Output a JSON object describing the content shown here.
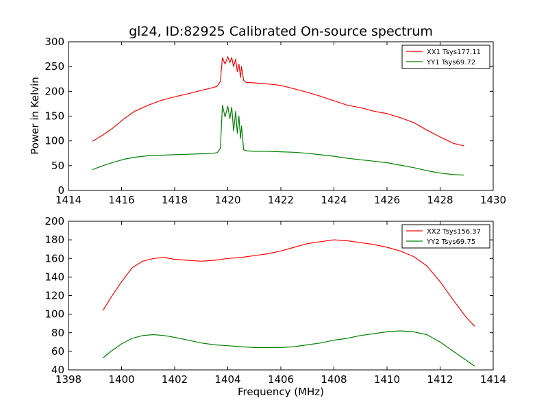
{
  "figure_title": "gl24, ID:82925 Calibrated On-source spectrum",
  "chart_data": [
    {
      "type": "line",
      "title": "gl24, ID:82925 Calibrated On-source spectrum",
      "xlabel": "",
      "ylabel": "Power in Kelvin",
      "xlim": [
        1414,
        1430
      ],
      "ylim": [
        0,
        300
      ],
      "xticks": [
        1414,
        1416,
        1418,
        1420,
        1422,
        1424,
        1426,
        1428,
        1430
      ],
      "yticks": [
        0,
        50,
        100,
        150,
        200,
        250,
        300
      ],
      "grid": false,
      "legend": "top-right",
      "series": [
        {
          "name": "XX1 Tsys177.11",
          "color": "#ff0000",
          "x": [
            1414.9,
            1415.3,
            1415.7,
            1416.1,
            1416.5,
            1417.0,
            1417.5,
            1418.0,
            1418.5,
            1419.0,
            1419.4,
            1419.6,
            1419.72,
            1419.8,
            1419.9,
            1420.0,
            1420.08,
            1420.15,
            1420.22,
            1420.3,
            1420.36,
            1420.42,
            1420.48,
            1420.52,
            1420.6,
            1420.7,
            1421.0,
            1421.5,
            1422.0,
            1422.5,
            1423.0,
            1423.5,
            1424.0,
            1424.5,
            1425.0,
            1425.5,
            1426.0,
            1426.5,
            1427.0,
            1427.5,
            1428.0,
            1428.5,
            1428.9
          ],
          "values": [
            99,
            112,
            127,
            145,
            160,
            172,
            182,
            189,
            195,
            202,
            207,
            210,
            220,
            268,
            255,
            270,
            258,
            268,
            250,
            265,
            240,
            255,
            228,
            250,
            222,
            218,
            217,
            215,
            212,
            205,
            198,
            190,
            181,
            172,
            167,
            160,
            155,
            147,
            137,
            122,
            108,
            95,
            90
          ]
        },
        {
          "name": "YY1 Tsys69.72",
          "color": "#008000",
          "x": [
            1414.9,
            1415.3,
            1415.7,
            1416.1,
            1416.5,
            1417.0,
            1417.5,
            1418.0,
            1418.5,
            1419.0,
            1419.4,
            1419.6,
            1419.72,
            1419.8,
            1419.9,
            1420.0,
            1420.08,
            1420.15,
            1420.22,
            1420.3,
            1420.36,
            1420.42,
            1420.48,
            1420.52,
            1420.6,
            1420.7,
            1421.0,
            1421.5,
            1422.0,
            1422.5,
            1423.0,
            1423.5,
            1424.0,
            1424.5,
            1425.0,
            1425.5,
            1426.0,
            1426.5,
            1427.0,
            1427.5,
            1428.0,
            1428.5,
            1428.9
          ],
          "values": [
            42,
            50,
            57,
            63,
            67,
            70,
            71,
            72,
            73,
            74,
            75,
            76,
            85,
            172,
            148,
            170,
            145,
            168,
            120,
            160,
            115,
            150,
            105,
            130,
            82,
            80,
            79,
            79,
            78,
            77,
            75,
            72,
            69,
            65,
            62,
            59,
            56,
            51,
            46,
            40,
            35,
            32,
            31
          ]
        }
      ]
    },
    {
      "type": "line",
      "title": "",
      "xlabel": "Frequency (MHz)",
      "ylabel": "",
      "xlim": [
        1398,
        1414
      ],
      "ylim": [
        40,
        200
      ],
      "xticks": [
        1398,
        1400,
        1402,
        1404,
        1406,
        1408,
        1410,
        1412,
        1414
      ],
      "yticks": [
        40,
        60,
        80,
        100,
        120,
        140,
        160,
        180,
        200
      ],
      "grid": false,
      "legend": "top-right",
      "series": [
        {
          "name": "XX2 Tsys156.37",
          "color": "#ff0000",
          "x": [
            1399.3,
            1399.6,
            1400.0,
            1400.4,
            1400.8,
            1401.2,
            1401.6,
            1402.0,
            1402.5,
            1403.0,
            1403.5,
            1404.0,
            1404.5,
            1405.0,
            1405.5,
            1406.0,
            1406.5,
            1407.0,
            1407.5,
            1408.0,
            1408.5,
            1409.0,
            1409.5,
            1410.0,
            1410.5,
            1411.0,
            1411.5,
            1412.0,
            1412.5,
            1413.0,
            1413.3
          ],
          "values": [
            104,
            118,
            135,
            150,
            157,
            160,
            161,
            159,
            158,
            157,
            158,
            160,
            161,
            163,
            165,
            168,
            172,
            176,
            178,
            180,
            179,
            177,
            175,
            172,
            168,
            162,
            152,
            135,
            115,
            96,
            87
          ]
        },
        {
          "name": "YY2 Tsys69.75",
          "color": "#008000",
          "x": [
            1399.3,
            1399.6,
            1400.0,
            1400.4,
            1400.8,
            1401.2,
            1401.6,
            1402.0,
            1402.5,
            1403.0,
            1403.5,
            1404.0,
            1404.5,
            1405.0,
            1405.5,
            1406.0,
            1406.5,
            1407.0,
            1407.5,
            1408.0,
            1408.5,
            1409.0,
            1409.5,
            1410.0,
            1410.5,
            1411.0,
            1411.5,
            1412.0,
            1412.5,
            1413.0,
            1413.3
          ],
          "values": [
            53,
            60,
            68,
            74,
            77,
            78,
            77,
            75,
            72,
            69,
            67,
            66,
            65,
            64,
            64,
            64,
            65,
            67,
            69,
            72,
            74,
            77,
            79,
            81,
            82,
            81,
            78,
            70,
            60,
            50,
            44
          ]
        }
      ]
    }
  ]
}
